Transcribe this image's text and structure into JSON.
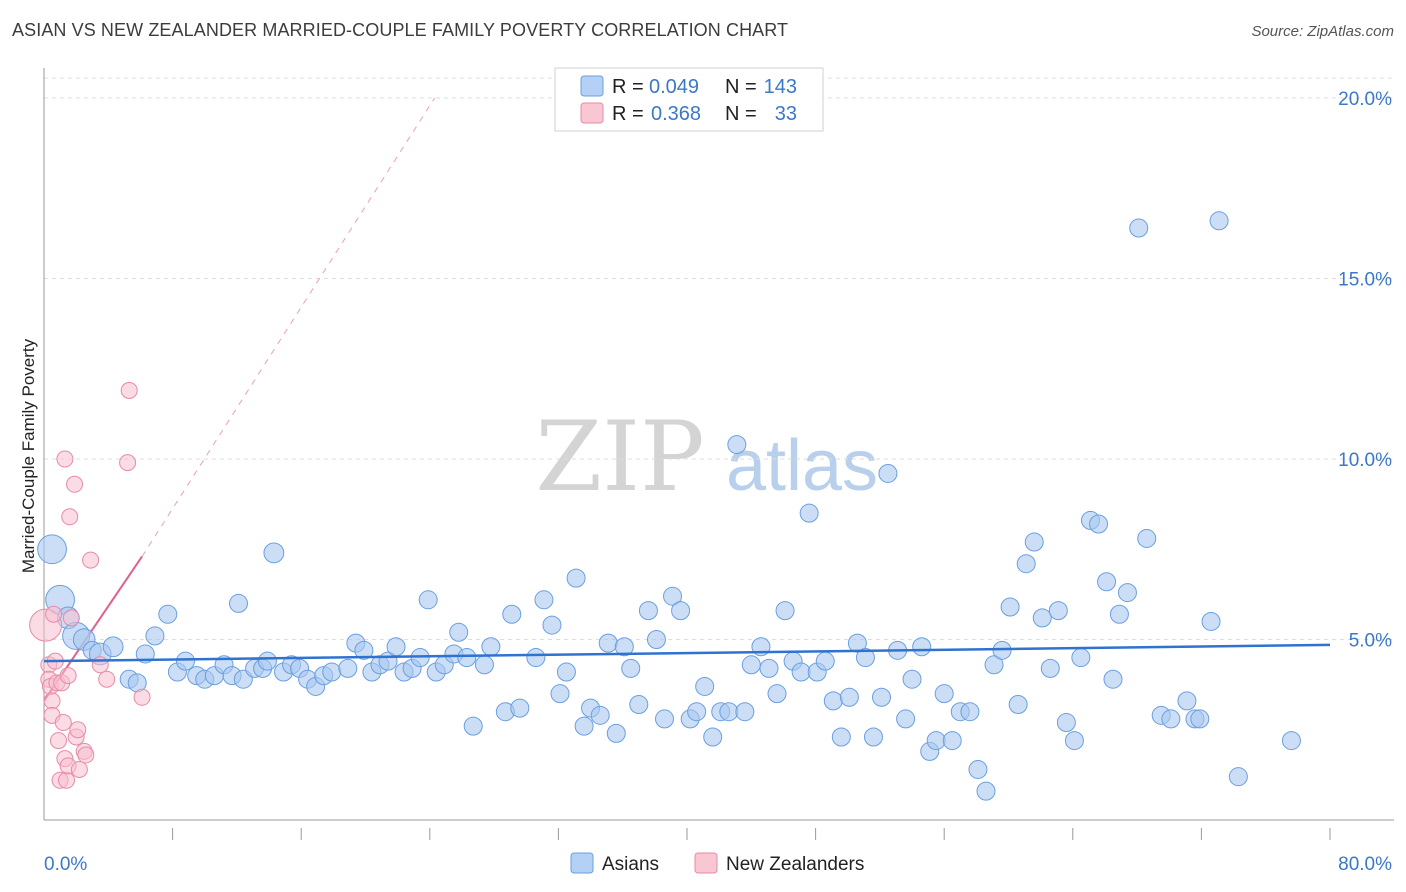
{
  "title": "ASIAN VS NEW ZEALANDER MARRIED-COUPLE FAMILY POVERTY CORRELATION CHART",
  "source": "Source: ZipAtlas.com",
  "watermark": {
    "zip": "ZIP",
    "atlas": "atlas"
  },
  "colors": {
    "asian_fill": "#a8c8f0",
    "asian_stroke": "#6a9fe0",
    "asian_line": "#2f72d0",
    "nz_fill": "#f8c0d0",
    "nz_stroke": "#e88aa8",
    "nz_line": "#e06090",
    "axis_label": "#3b78c8",
    "grid": "#dddddd"
  },
  "legend": {
    "rows": [
      {
        "r_label": "R =",
        "r_value": "0.049",
        "n_label": "N =",
        "n_value": "143"
      },
      {
        "r_label": "R =",
        "r_value": "0.368",
        "n_label": "N =",
        "n_value": "33"
      }
    ]
  },
  "bottom_legend": {
    "asians": "Asians",
    "new_zealanders": "New Zealanders"
  },
  "chart_data": {
    "type": "scatter",
    "title": "ASIAN VS NEW ZEALANDER MARRIED-COUPLE FAMILY POVERTY CORRELATION CHART",
    "xlabel": "",
    "ylabel": "Married-Couple Family Poverty",
    "xlim": [
      0,
      80
    ],
    "ylim": [
      0,
      20.5
    ],
    "x_tick_labels": {
      "min": "0.0%",
      "max": "80.0%"
    },
    "y_ticks": [
      {
        "value": 5,
        "label": "5.0%"
      },
      {
        "value": 10,
        "label": "10.0%"
      },
      {
        "value": 15,
        "label": "15.0%"
      },
      {
        "value": 20,
        "label": "20.0%"
      }
    ],
    "grid": true,
    "series": [
      {
        "name": "Asians",
        "R": 0.049,
        "N": 143,
        "trend": {
          "x": [
            0,
            80
          ],
          "y": [
            4.4,
            4.85
          ]
        },
        "points": [
          [
            0.5,
            7.5,
            1.6
          ],
          [
            1.0,
            6.1,
            1.6
          ],
          [
            1.5,
            5.6,
            1.2
          ],
          [
            2.0,
            5.1,
            1.5
          ],
          [
            2.5,
            5.0,
            1.2
          ],
          [
            3.0,
            4.7,
            1.0
          ],
          [
            3.5,
            4.6,
            1.2
          ],
          [
            4.3,
            4.8,
            1.1
          ],
          [
            5.3,
            3.9,
            1.0
          ],
          [
            5.8,
            3.8,
            1.0
          ],
          [
            6.3,
            4.6,
            1.0
          ],
          [
            6.9,
            5.1,
            1.0
          ],
          [
            7.7,
            5.7,
            1.0
          ],
          [
            8.3,
            4.1,
            1.0
          ],
          [
            8.8,
            4.4,
            1.0
          ],
          [
            9.5,
            4.0,
            1.0
          ],
          [
            10.0,
            3.9,
            1.0
          ],
          [
            10.6,
            4.0,
            1.0
          ],
          [
            11.2,
            4.3,
            1.0
          ],
          [
            11.7,
            4.0,
            1.0
          ],
          [
            12.1,
            6.0,
            1.0
          ],
          [
            12.4,
            3.9,
            1.0
          ],
          [
            13.1,
            4.2,
            1.0
          ],
          [
            13.6,
            4.2,
            1.0
          ],
          [
            13.9,
            4.4,
            1.0
          ],
          [
            14.3,
            7.4,
            1.1
          ],
          [
            14.9,
            4.1,
            1.0
          ],
          [
            15.4,
            4.3,
            1.0
          ],
          [
            15.9,
            4.2,
            1.0
          ],
          [
            16.4,
            3.9,
            1.0
          ],
          [
            16.9,
            3.7,
            1.0
          ],
          [
            17.4,
            4.0,
            1.0
          ],
          [
            17.9,
            4.1,
            1.0
          ],
          [
            18.9,
            4.2,
            1.0
          ],
          [
            19.4,
            4.9,
            1.0
          ],
          [
            19.9,
            4.7,
            1.0
          ],
          [
            20.4,
            4.1,
            1.0
          ],
          [
            20.9,
            4.3,
            1.0
          ],
          [
            21.4,
            4.4,
            1.0
          ],
          [
            21.9,
            4.8,
            1.0
          ],
          [
            22.4,
            4.1,
            1.0
          ],
          [
            22.9,
            4.2,
            1.0
          ],
          [
            23.4,
            4.5,
            1.0
          ],
          [
            23.9,
            6.1,
            1.0
          ],
          [
            24.4,
            4.1,
            1.0
          ],
          [
            24.9,
            4.3,
            1.0
          ],
          [
            25.5,
            4.6,
            1.0
          ],
          [
            25.8,
            5.2,
            1.0
          ],
          [
            26.3,
            4.5,
            1.0
          ],
          [
            26.7,
            2.6,
            1.0
          ],
          [
            27.4,
            4.3,
            1.0
          ],
          [
            27.8,
            4.8,
            1.0
          ],
          [
            28.7,
            3.0,
            1.0
          ],
          [
            29.1,
            5.7,
            1.0
          ],
          [
            29.6,
            3.1,
            1.0
          ],
          [
            30.6,
            4.5,
            1.0
          ],
          [
            31.1,
            6.1,
            1.0
          ],
          [
            31.6,
            5.4,
            1.0
          ],
          [
            32.1,
            3.5,
            1.0
          ],
          [
            32.5,
            4.1,
            1.0
          ],
          [
            33.1,
            6.7,
            1.0
          ],
          [
            33.6,
            2.6,
            1.0
          ],
          [
            34.0,
            3.1,
            1.0
          ],
          [
            34.6,
            2.9,
            1.0
          ],
          [
            35.1,
            4.9,
            1.0
          ],
          [
            35.6,
            2.4,
            1.0
          ],
          [
            36.1,
            4.8,
            1.0
          ],
          [
            36.5,
            4.2,
            1.0
          ],
          [
            37.0,
            3.2,
            1.0
          ],
          [
            37.6,
            5.8,
            1.0
          ],
          [
            38.1,
            5.0,
            1.0
          ],
          [
            38.6,
            2.8,
            1.0
          ],
          [
            39.1,
            6.2,
            1.0
          ],
          [
            39.6,
            5.8,
            1.0
          ],
          [
            40.2,
            2.8,
            1.0
          ],
          [
            40.6,
            3.0,
            1.0
          ],
          [
            41.1,
            3.7,
            1.0
          ],
          [
            41.6,
            2.3,
            1.0
          ],
          [
            42.1,
            3.0,
            1.0
          ],
          [
            42.6,
            3.0,
            1.0
          ],
          [
            43.1,
            10.4,
            1.0
          ],
          [
            43.6,
            3.0,
            1.0
          ],
          [
            44.0,
            4.3,
            1.0
          ],
          [
            44.6,
            4.8,
            1.0
          ],
          [
            45.1,
            4.2,
            1.0
          ],
          [
            45.6,
            3.5,
            1.0
          ],
          [
            46.1,
            5.8,
            1.0
          ],
          [
            46.6,
            4.4,
            1.0
          ],
          [
            47.1,
            4.1,
            1.0
          ],
          [
            47.6,
            8.5,
            1.0
          ],
          [
            48.1,
            4.1,
            1.0
          ],
          [
            48.6,
            4.4,
            1.0
          ],
          [
            49.1,
            3.3,
            1.0
          ],
          [
            49.6,
            2.3,
            1.0
          ],
          [
            50.1,
            3.4,
            1.0
          ],
          [
            50.6,
            4.9,
            1.0
          ],
          [
            51.1,
            4.5,
            1.0
          ],
          [
            51.6,
            2.3,
            1.0
          ],
          [
            52.1,
            3.4,
            1.0
          ],
          [
            52.5,
            9.6,
            1.0
          ],
          [
            53.1,
            4.7,
            1.0
          ],
          [
            53.6,
            2.8,
            1.0
          ],
          [
            54.0,
            3.9,
            1.0
          ],
          [
            54.6,
            4.8,
            1.0
          ],
          [
            55.1,
            1.9,
            1.0
          ],
          [
            55.5,
            2.2,
            1.0
          ],
          [
            56.0,
            3.5,
            1.0
          ],
          [
            56.5,
            2.2,
            1.0
          ],
          [
            57.0,
            3.0,
            1.0
          ],
          [
            57.6,
            3.0,
            1.0
          ],
          [
            58.1,
            1.4,
            1.0
          ],
          [
            58.6,
            0.8,
            1.0
          ],
          [
            59.1,
            4.3,
            1.0
          ],
          [
            59.6,
            4.7,
            1.0
          ],
          [
            60.1,
            5.9,
            1.0
          ],
          [
            60.6,
            3.2,
            1.0
          ],
          [
            61.1,
            7.1,
            1.0
          ],
          [
            61.6,
            7.7,
            1.0
          ],
          [
            62.1,
            5.6,
            1.0
          ],
          [
            62.6,
            4.2,
            1.0
          ],
          [
            63.1,
            5.8,
            1.0
          ],
          [
            63.6,
            2.7,
            1.0
          ],
          [
            64.1,
            2.2,
            1.0
          ],
          [
            64.5,
            4.5,
            1.0
          ],
          [
            65.1,
            8.3,
            1.0
          ],
          [
            65.6,
            8.2,
            1.0
          ],
          [
            66.1,
            6.6,
            1.0
          ],
          [
            66.5,
            3.9,
            1.0
          ],
          [
            66.9,
            5.7,
            1.0
          ],
          [
            67.4,
            6.3,
            1.0
          ],
          [
            68.1,
            16.4,
            1.0
          ],
          [
            68.6,
            7.8,
            1.0
          ],
          [
            69.5,
            2.9,
            1.0
          ],
          [
            70.1,
            2.8,
            1.0
          ],
          [
            71.1,
            3.3,
            1.0
          ],
          [
            71.6,
            2.8,
            1.0
          ],
          [
            71.9,
            2.8,
            1.0
          ],
          [
            72.6,
            5.5,
            1.0
          ],
          [
            73.1,
            16.6,
            1.0
          ],
          [
            74.3,
            1.2,
            1.0
          ],
          [
            77.6,
            2.2,
            1.0
          ]
        ]
      },
      {
        "name": "New Zealanders",
        "R": 0.368,
        "N": 33,
        "trend": {
          "x": [
            0,
            6.1
          ],
          "y": [
            3.3,
            7.3
          ]
        },
        "trend_extension": {
          "x": [
            6.1,
            24.3
          ],
          "y": [
            7.3,
            20.0
          ]
        },
        "points": [
          [
            0.1,
            5.4,
            2.0
          ],
          [
            0.3,
            4.3,
            1.0
          ],
          [
            0.3,
            3.9,
            1.0
          ],
          [
            0.4,
            3.7,
            1.0
          ],
          [
            0.5,
            3.3,
            1.0
          ],
          [
            0.5,
            2.9,
            1.0
          ],
          [
            0.6,
            5.7,
            1.0
          ],
          [
            0.7,
            4.4,
            1.0
          ],
          [
            0.8,
            3.8,
            1.0
          ],
          [
            0.9,
            2.2,
            1.0
          ],
          [
            1.0,
            1.1,
            1.0
          ],
          [
            1.1,
            3.8,
            1.0
          ],
          [
            1.2,
            2.7,
            1.0
          ],
          [
            1.3,
            10.0,
            1.0
          ],
          [
            1.3,
            1.7,
            1.0
          ],
          [
            1.4,
            1.1,
            1.0
          ],
          [
            1.5,
            4.0,
            1.0
          ],
          [
            1.5,
            1.5,
            1.0
          ],
          [
            1.6,
            8.4,
            1.0
          ],
          [
            1.7,
            5.6,
            1.0
          ],
          [
            1.9,
            9.3,
            1.0
          ],
          [
            2.0,
            2.3,
            1.0
          ],
          [
            2.1,
            2.5,
            1.0
          ],
          [
            2.2,
            1.4,
            1.0
          ],
          [
            2.5,
            1.9,
            1.0
          ],
          [
            2.6,
            1.8,
            1.0
          ],
          [
            2.9,
            7.2,
            1.0
          ],
          [
            3.5,
            4.3,
            1.0
          ],
          [
            3.9,
            3.9,
            1.0
          ],
          [
            5.2,
            9.9,
            1.0
          ],
          [
            5.3,
            11.9,
            1.0
          ],
          [
            6.1,
            3.4,
            1.0
          ]
        ]
      }
    ]
  }
}
